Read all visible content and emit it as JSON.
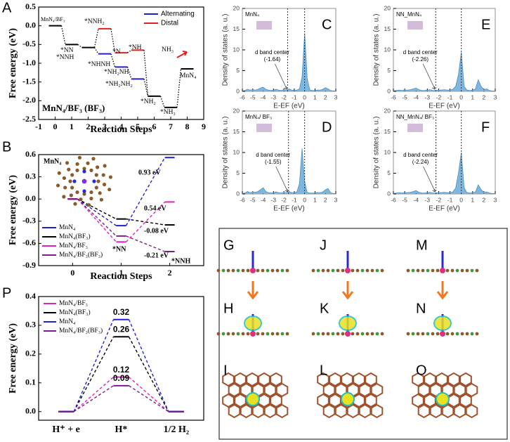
{
  "chart_data": [
    {
      "type": "step",
      "label": "A",
      "title": "MnN₄/BF₃ (BF₃)",
      "xlabel": "Reaction Steps",
      "ylabel": "Free energy (eV)",
      "x": [
        0,
        1,
        2,
        3,
        4,
        5,
        6,
        7,
        8
      ],
      "xlim": [
        -1,
        9
      ],
      "xticks": [
        -1,
        0,
        1,
        2,
        3,
        4,
        5,
        6,
        7,
        8,
        9
      ],
      "ylim": [
        -2.5,
        0.5
      ],
      "yticks": [
        0.5,
        {
          "value": 0,
          "label": "0.0"
        },
        -0.5,
        {
          "value": -1,
          "label": "-1.0"
        },
        -1.5,
        {
          "value": -2,
          "label": "-2.0"
        },
        -2.5
      ],
      "common_color": "#000000",
      "legend": "upper right",
      "series": [
        {
          "name": "Alternating",
          "color": "#1f1fd0",
          "values": [
            0,
            -0.5,
            -0.58,
            -0.75,
            -1.1,
            -1.42,
            -1.88,
            -2.18,
            -1.15
          ]
        },
        {
          "name": "Distal",
          "color": "#e02020",
          "values": [
            0,
            -0.5,
            -0.58,
            -0.08,
            -0.72,
            -0.65,
            -1.88,
            -2.18,
            -1.15
          ]
        }
      ],
      "annotations": [
        "MnN₄/BF₃",
        "*NN",
        "*NNH",
        "*NNH₂",
        "*NHNH",
        "*N",
        "*NH",
        "*NH₂NH",
        "*NH₂NH₂",
        "*NH₂",
        "*NH₃",
        "NH₃",
        "MnN₄"
      ]
    },
    {
      "type": "step",
      "label": "B",
      "xlabel": "Reaction Steps",
      "ylabel": "Free energy (eV)",
      "x": [
        0,
        1,
        2
      ],
      "xlim": [
        -0.7,
        2.7
      ],
      "xticks": [
        0,
        1,
        2
      ],
      "ylim": [
        -0.9,
        0.6
      ],
      "yticks": [
        0.6,
        0.3,
        {
          "value": 0,
          "label": "0.0"
        },
        -0.3,
        -0.6,
        -0.9
      ],
      "legend": "lower left",
      "series": [
        {
          "name": "MnN₄",
          "color": "#1f1fd0",
          "values": [
            0,
            -0.36,
            0.56
          ]
        },
        {
          "name": "MnN₄(BF₃)",
          "color": "#000000",
          "values": [
            0,
            -0.27,
            -0.35
          ]
        },
        {
          "name": "MnN₄/BF₃",
          "color": "#e020c0",
          "values": [
            0,
            -0.58,
            -0.04
          ]
        },
        {
          "name": "MnN₄/BF₃(BF₃)",
          "color": "#7a1f8a",
          "values": [
            0,
            -0.5,
            -0.71
          ]
        }
      ],
      "annotations": [
        "MnN₄",
        "0.93 eV",
        "0.54 eV",
        "-0.08 eV",
        "-0.21 eV",
        "*NN",
        "*NNH"
      ]
    },
    {
      "type": "area",
      "label": "C",
      "title": "MnN₄",
      "xlabel": "E-EF (eV)",
      "ylabel": "Density of states (a. u.)",
      "color": "#4a90c4",
      "x": [
        -6,
        -5.75,
        -5.5,
        -5.25,
        -5,
        -4.75,
        -4.5,
        -4.25,
        -4,
        -3.75,
        -3.5,
        -3.25,
        -3,
        -2.75,
        -2.5,
        -2.25,
        -2,
        -1.75,
        -1.5,
        -1.25,
        -1,
        -0.75,
        -0.5,
        -0.25,
        0,
        0.25,
        0.5,
        0.75,
        1,
        1.25,
        1.5,
        1.75,
        2,
        2.25,
        2.5,
        2.75,
        3
      ],
      "values": [
        0.1,
        0.2,
        0.5,
        0.3,
        0.4,
        0.3,
        0.5,
        0.8,
        1.0,
        0.5,
        0.3,
        0.2,
        0.3,
        0.5,
        0.3,
        0.2,
        0.4,
        0.3,
        0.6,
        0.3,
        0.2,
        0.3,
        0.6,
        3.5,
        14,
        3,
        0.3,
        0.2,
        0.2,
        0.3,
        0.3,
        0.5,
        0.9,
        0.6,
        0.2,
        0.1,
        0.1
      ],
      "xlim": [
        -6,
        3
      ],
      "xticks": [
        -6,
        -5,
        -4,
        -3,
        -2,
        -1,
        0,
        1,
        2,
        3
      ],
      "ylim": [
        0,
        20
      ],
      "yticks": [
        0,
        5,
        10,
        15,
        20
      ],
      "annotation": "d band center",
      "d_band_center": {
        "value": -1.64,
        "label": "(-1.64)"
      }
    },
    {
      "type": "area",
      "label": "E",
      "title": "NN_MnN₄",
      "xlabel": "E-EF (eV)",
      "ylabel": "Density of states (a. u.)",
      "color": "#4a90c4",
      "x": [
        -6,
        -5.75,
        -5.5,
        -5.25,
        -5,
        -4.75,
        -4.5,
        -4.25,
        -4,
        -3.75,
        -3.5,
        -3.25,
        -3,
        -2.75,
        -2.5,
        -2.25,
        -2,
        -1.75,
        -1.5,
        -1.25,
        -1,
        -0.75,
        -0.5,
        -0.25,
        0,
        0.25,
        0.5,
        0.75,
        1,
        1.25,
        1.5,
        1.75,
        2,
        2.25,
        2.5,
        2.75,
        3
      ],
      "values": [
        0.1,
        0.2,
        0.3,
        0.2,
        0.3,
        0.3,
        0.4,
        0.6,
        0.8,
        0.4,
        0.2,
        0.2,
        0.3,
        0.4,
        0.2,
        0.2,
        0.3,
        0.3,
        0.4,
        0.3,
        0.3,
        0.5,
        1.2,
        4,
        9.5,
        1.2,
        0.3,
        0.2,
        0.3,
        0.6,
        2.8,
        1.2,
        0.4,
        0.6,
        0.2,
        0.1,
        0.1
      ],
      "xlim": [
        -6,
        3
      ],
      "xticks": [
        -6,
        -5,
        -4,
        -3,
        -2,
        -1,
        0,
        1,
        2,
        3
      ],
      "ylim": [
        0,
        20
      ],
      "yticks": [
        0,
        5,
        10,
        15,
        20
      ],
      "annotation": "d band center",
      "d_band_center": {
        "value": -2.26,
        "label": "(-2.26)"
      }
    },
    {
      "type": "area",
      "label": "D",
      "title": "MnN₄/ BF₃",
      "xlabel": "E-EF (eV)",
      "ylabel": "Density of states (a. u.)",
      "color": "#4a90c4",
      "x": [
        -6,
        -5.75,
        -5.5,
        -5.25,
        -5,
        -4.75,
        -4.5,
        -4.25,
        -4,
        -3.75,
        -3.5,
        -3.25,
        -3,
        -2.75,
        -2.5,
        -2.25,
        -2,
        -1.75,
        -1.5,
        -1.25,
        -1,
        -0.75,
        -0.5,
        -0.25,
        0,
        0.25,
        0.5,
        0.75,
        1,
        1.25,
        1.5,
        1.75,
        2,
        2.25,
        2.5,
        2.75,
        3
      ],
      "values": [
        0.1,
        0.2,
        0.6,
        0.3,
        0.5,
        0.4,
        0.6,
        1.0,
        1.5,
        0.6,
        0.3,
        0.2,
        0.3,
        0.5,
        0.3,
        0.2,
        0.4,
        0.3,
        0.6,
        0.3,
        0.3,
        0.5,
        2.5,
        11,
        3,
        0.3,
        0.2,
        0.2,
        0.2,
        0.3,
        0.3,
        0.5,
        1.0,
        1.3,
        0.3,
        0.1,
        0.1
      ],
      "xlim": [
        -6,
        3
      ],
      "xticks": [
        -6,
        -5,
        -4,
        -3,
        -2,
        -1,
        0,
        1,
        2,
        3
      ],
      "ylim": [
        0,
        20
      ],
      "yticks": [
        0,
        5,
        10,
        15,
        20
      ],
      "annotation": "d band center",
      "d_band_center": {
        "value": -1.55,
        "label": "(-1.55)"
      }
    },
    {
      "type": "area",
      "label": "F",
      "title": "NN_MnN₄/ BF₃",
      "xlabel": "E-EF (eV)",
      "ylabel": "Density of states (a. u.)",
      "color": "#4a90c4",
      "x": [
        -6,
        -5.75,
        -5.5,
        -5.25,
        -5,
        -4.75,
        -4.5,
        -4.25,
        -4,
        -3.75,
        -3.5,
        -3.25,
        -3,
        -2.75,
        -2.5,
        -2.25,
        -2,
        -1.75,
        -1.5,
        -1.25,
        -1,
        -0.75,
        -0.5,
        -0.25,
        0,
        0.25,
        0.5,
        0.75,
        1,
        1.25,
        1.5,
        1.75,
        2,
        2.25,
        2.5,
        2.75,
        3
      ],
      "values": [
        0.1,
        0.2,
        0.3,
        0.2,
        0.3,
        0.3,
        0.4,
        0.6,
        0.8,
        0.4,
        0.2,
        0.2,
        0.3,
        0.4,
        0.2,
        0.2,
        0.3,
        0.3,
        0.4,
        0.3,
        0.3,
        0.5,
        1.4,
        5,
        10,
        1.5,
        0.3,
        0.2,
        0.3,
        0.5,
        2.2,
        1.0,
        0.4,
        0.5,
        0.2,
        0.1,
        0.1
      ],
      "xlim": [
        -6,
        3
      ],
      "xticks": [
        -6,
        -5,
        -4,
        -3,
        -2,
        -1,
        0,
        1,
        2,
        3
      ],
      "ylim": [
        0,
        20
      ],
      "yticks": [
        0,
        5,
        10,
        15,
        20
      ],
      "annotation": "d band center",
      "d_band_center": {
        "value": -2.24,
        "label": "(-2.24)"
      }
    },
    {
      "type": "step",
      "label": "P",
      "ylabel": "Free energy (eV)",
      "categories": [
        "H⁺ + e",
        "H*",
        "1/2 H₂"
      ],
      "ylim": [
        -0.03,
        0.4
      ],
      "yticks": [
        {
          "value": 0,
          "label": "0.0"
        },
        0.1,
        0.2,
        0.3,
        0.4
      ],
      "legend": "upper left",
      "series": [
        {
          "name": "MnN₄/BF₃",
          "color": "#e020c0",
          "values": [
            0,
            0.12,
            0
          ]
        },
        {
          "name": "MnN₄(BF₃)",
          "color": "#000000",
          "values": [
            0,
            0.26,
            0
          ]
        },
        {
          "name": "MnN₄",
          "color": "#1f1fd0",
          "values": [
            0,
            0.32,
            0
          ]
        },
        {
          "name": "MnN₄/BF₃(BF₃)",
          "color": "#7a1f8a",
          "values": [
            0,
            0.09,
            0
          ]
        }
      ]
    }
  ],
  "image_panels": {
    "labels": [
      "G",
      "J",
      "M",
      "H",
      "K",
      "N",
      "I",
      "L",
      "O"
    ]
  }
}
